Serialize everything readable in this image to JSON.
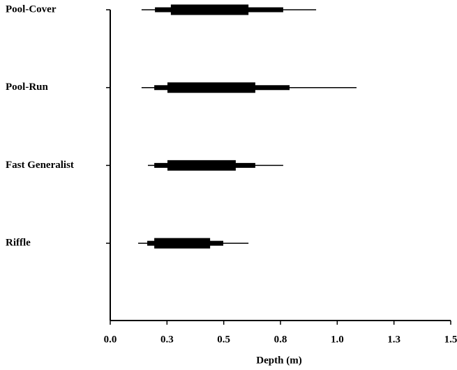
{
  "chart_data": {
    "type": "range",
    "categories": [
      "Pool-Cover",
      "Pool-Run",
      "Fast Generalist",
      "Riffle"
    ],
    "series": [
      {
        "low": [
          0.138,
          0.138,
          0.166,
          0.123
        ],
        "high": [
          0.907,
          1.085,
          0.762,
          0.609
        ]
      },
      {
        "low": [
          0.197,
          0.194,
          0.194,
          0.163
        ],
        "high": [
          0.762,
          0.79,
          0.639,
          0.498
        ]
      },
      {
        "low": [
          0.267,
          0.252,
          0.252,
          0.194
        ],
        "high": [
          0.609,
          0.639,
          0.553,
          0.44
        ]
      }
    ],
    "color": "#000000",
    "xlabel": "Depth (m)",
    "xlim": [
      0,
      1.5
    ],
    "xticks": [
      {
        "value": 0,
        "label": "0.0"
      },
      {
        "value": 0.25,
        "label": "0.3"
      },
      0.5,
      {
        "value": 0.75,
        "label": "0.8"
      },
      {
        "value": 1,
        "label": "1.0"
      },
      {
        "value": 1.25,
        "label": "1.3"
      },
      1.5
    ]
  }
}
